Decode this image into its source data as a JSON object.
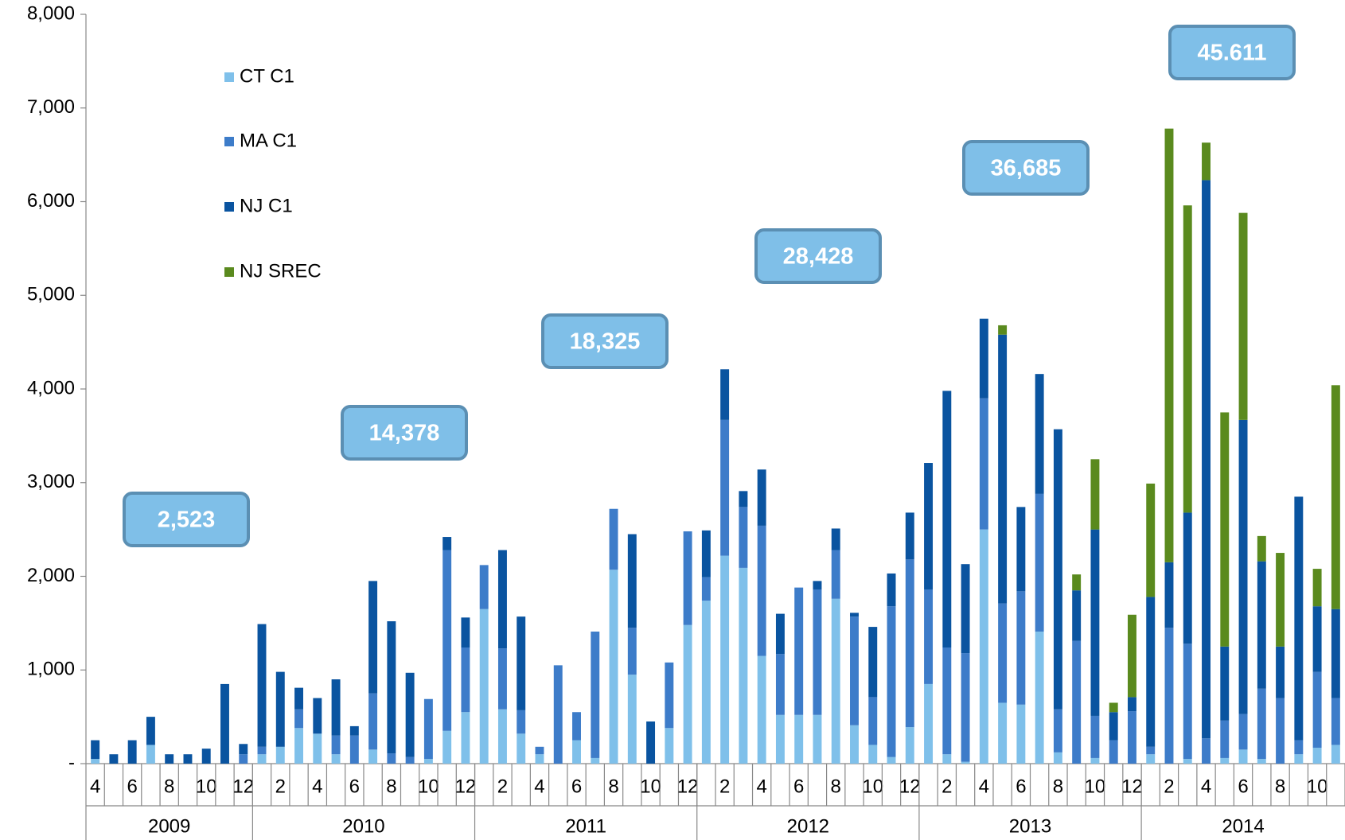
{
  "chart_data": {
    "type": "stacked_bar",
    "categories": [
      "4",
      null,
      "6",
      null,
      "8",
      null,
      "10",
      null,
      "12",
      null,
      "2",
      null,
      "4",
      null,
      "6",
      null,
      "8",
      null,
      "10",
      null,
      "12",
      null,
      "2",
      null,
      "4",
      null,
      "6",
      null,
      "8",
      null,
      "10",
      null,
      "12",
      null,
      "2",
      null,
      "4",
      null,
      "6",
      null,
      "8",
      null,
      "10",
      null,
      "12",
      null,
      "2",
      null,
      "4",
      null,
      "6",
      null,
      "8",
      null,
      "10",
      null,
      "12",
      null,
      "2",
      null,
      "4",
      null,
      "6",
      null,
      "8",
      null,
      "10",
      null
    ],
    "year_groups": [
      {
        "label": "2009",
        "count": 9
      },
      {
        "label": "2010",
        "count": 12
      },
      {
        "label": "2011",
        "count": 12
      },
      {
        "label": "2012",
        "count": 12
      },
      {
        "label": "2013",
        "count": 12
      },
      {
        "label": "2014",
        "count": 11
      }
    ],
    "annotations": [
      "2,523",
      "14,378",
      "18,325",
      "28,428",
      "36,685",
      "45.611"
    ],
    "series": [
      {
        "name": "CT C1",
        "color": "#7fc0ea",
        "values": [
          50,
          0,
          0,
          200,
          0,
          0,
          0,
          0,
          0,
          100,
          180,
          380,
          320,
          100,
          0,
          150,
          0,
          0,
          50,
          350,
          550,
          1650,
          580,
          320,
          100,
          0,
          250,
          60,
          2070,
          950,
          0,
          380,
          1480,
          1740,
          2220,
          2090,
          1150,
          520,
          520,
          520,
          1760,
          410,
          200,
          70,
          390,
          850,
          100,
          20,
          2500,
          650,
          630,
          1410,
          120,
          0,
          60,
          0,
          0,
          100,
          0,
          50,
          0,
          60,
          150,
          50,
          0,
          100,
          170,
          200
        ]
      },
      {
        "name": "MA C1",
        "color": "#3d7cc9",
        "values": [
          0,
          0,
          0,
          0,
          0,
          0,
          0,
          0,
          100,
          80,
          0,
          200,
          0,
          200,
          300,
          600,
          110,
          70,
          640,
          1930,
          690,
          470,
          650,
          250,
          80,
          1050,
          300,
          1350,
          650,
          500,
          0,
          700,
          1000,
          250,
          1450,
          650,
          1390,
          650,
          1360,
          1340,
          520,
          1160,
          510,
          1610,
          1790,
          1010,
          1140,
          1160,
          1400,
          1060,
          1210,
          1470,
          460,
          1310,
          450,
          250,
          560,
          80,
          1450,
          1230,
          270,
          400,
          380,
          750,
          700,
          150,
          810,
          500
        ]
      },
      {
        "name": "NJ C1",
        "color": "#0a54a0",
        "values": [
          200,
          100,
          250,
          300,
          100,
          100,
          160,
          850,
          110,
          1310,
          800,
          230,
          380,
          600,
          100,
          1200,
          1410,
          900,
          0,
          140,
          320,
          0,
          1050,
          1000,
          0,
          0,
          0,
          0,
          0,
          1000,
          450,
          0,
          0,
          500,
          540,
          170,
          600,
          430,
          0,
          90,
          230,
          40,
          750,
          350,
          500,
          1350,
          2740,
          950,
          850,
          2870,
          900,
          1280,
          2990,
          540,
          1990,
          300,
          150,
          1600,
          700,
          1400,
          5960,
          790,
          3140,
          1360,
          550,
          2600,
          700,
          950
        ]
      },
      {
        "name": "NJ SREC",
        "color": "#5a8a1e",
        "values": [
          0,
          0,
          0,
          0,
          0,
          0,
          0,
          0,
          0,
          0,
          0,
          0,
          0,
          0,
          0,
          0,
          0,
          0,
          0,
          0,
          0,
          0,
          0,
          0,
          0,
          0,
          0,
          0,
          0,
          0,
          0,
          0,
          0,
          0,
          0,
          0,
          0,
          0,
          0,
          0,
          0,
          0,
          0,
          0,
          0,
          0,
          0,
          0,
          0,
          100,
          0,
          0,
          0,
          170,
          750,
          100,
          880,
          1210,
          4630,
          3280,
          400,
          2500,
          2210,
          270,
          1000,
          0,
          400,
          2390
        ]
      }
    ],
    "ylim": [
      0,
      8000
    ],
    "yticks": [
      {
        "value": 0,
        "label": "-"
      },
      {
        "value": 1000,
        "label": "1,000"
      },
      {
        "value": 2000,
        "label": "2,000"
      },
      {
        "value": 3000,
        "label": "3,000"
      },
      {
        "value": 4000,
        "label": "4,000"
      },
      {
        "value": 5000,
        "label": "5,000"
      },
      {
        "value": 6000,
        "label": "6,000"
      },
      {
        "value": 7000,
        "label": "7,000"
      },
      {
        "value": 8000,
        "label": "8,000"
      }
    ],
    "legend": "top-left"
  }
}
